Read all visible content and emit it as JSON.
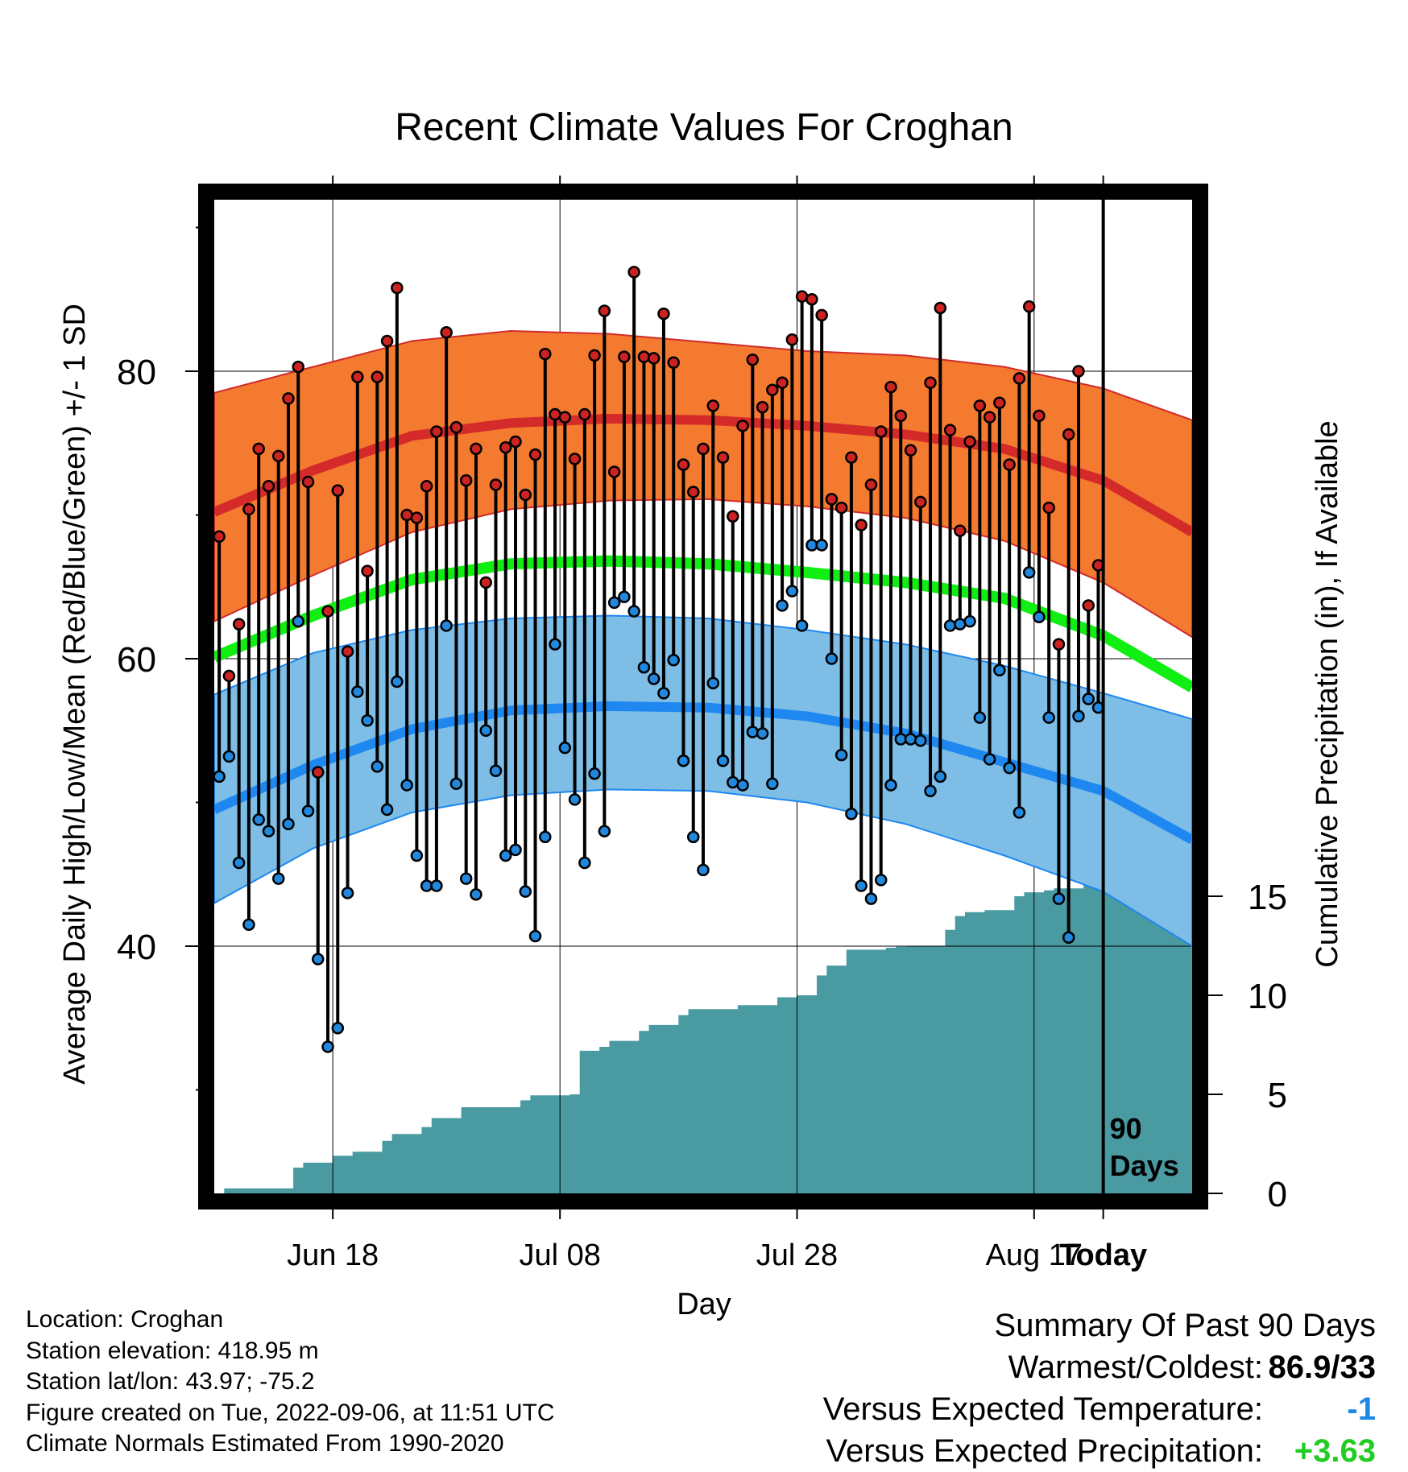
{
  "chart_data": {
    "type": "line",
    "title": "Recent Climate Values For Croghan",
    "xlabel": "Day",
    "ylabel": "Average Daily High/Low/Mean (Red/Blue/Green) +/- 1 SD",
    "y2label": "Cumulative Precipitation (in), If Available",
    "ylim": [
      23,
      92
    ],
    "y2lim": [
      0,
      20
    ],
    "x_ticks": [
      "Jun 18",
      "Jul 08",
      "Jul 28",
      "Aug 17",
      "Today"
    ],
    "y_ticks": [
      40,
      60,
      80
    ],
    "y2_ticks": [
      0,
      5,
      10,
      15
    ],
    "marker_label": [
      "90",
      "Days"
    ],
    "colors": {
      "high_band": "#f47a30",
      "high_mean": "#d42a2a",
      "low_band": "#7dbde6",
      "low_mean": "#1e88f0",
      "mean": "#11ee11",
      "precip": "#4a9aa2",
      "high_dot": "#cc2222",
      "low_dot": "#2288dd"
    },
    "normals": {
      "day": [
        0,
        10,
        20,
        30,
        40,
        50,
        60,
        70,
        80,
        90,
        99
      ],
      "high_mean": [
        70.2,
        73.1,
        75.5,
        76.4,
        76.7,
        76.6,
        76.2,
        75.6,
        74.6,
        72.4,
        68.8
      ],
      "high_upper": [
        78.5,
        80.3,
        82.1,
        82.8,
        82.6,
        82.0,
        81.4,
        81.1,
        80.3,
        78.8,
        76.6
      ],
      "high_lower": [
        62.6,
        65.8,
        68.8,
        70.4,
        71.0,
        71.1,
        70.6,
        69.8,
        68.2,
        65.3,
        61.5
      ],
      "mean": [
        60.1,
        63.0,
        65.5,
        66.6,
        66.8,
        66.6,
        66.0,
        65.3,
        64.2,
        61.6,
        58.0
      ],
      "low_upper": [
        57.5,
        60.4,
        62.0,
        62.8,
        63.0,
        62.8,
        62.0,
        61.0,
        59.5,
        57.6,
        55.8
      ],
      "low_mean": [
        49.5,
        52.6,
        55.1,
        56.4,
        56.7,
        56.6,
        56.0,
        54.8,
        52.8,
        50.8,
        47.4
      ],
      "low_lower": [
        43.0,
        46.8,
        49.3,
        50.5,
        50.9,
        50.8,
        50.0,
        48.5,
        46.3,
        43.8,
        40.0
      ]
    },
    "series": [
      {
        "name": "High",
        "x": [
          0,
          1,
          2,
          3,
          4,
          5,
          6,
          7,
          8,
          9,
          10,
          11,
          12,
          13,
          14,
          15,
          16,
          17,
          18,
          19,
          20,
          21,
          22,
          23,
          24,
          25,
          26,
          27,
          28,
          29,
          30,
          31,
          32,
          33,
          34,
          35,
          36,
          37,
          38,
          39,
          40,
          41,
          42,
          43,
          44,
          45,
          46,
          47,
          48,
          49,
          50,
          51,
          52,
          53,
          54,
          55,
          56,
          57,
          58,
          59,
          60,
          61,
          62,
          63,
          64,
          65,
          66,
          67,
          68,
          69,
          70,
          71,
          72,
          73,
          74,
          75,
          76,
          77,
          78,
          79,
          80,
          81,
          82,
          83,
          84,
          85,
          86,
          87,
          88,
          89
        ],
        "values": [
          68.5,
          58.8,
          62.4,
          70.4,
          74.6,
          72.0,
          74.1,
          78.1,
          80.3,
          72.3,
          52.1,
          63.3,
          71.7,
          60.5,
          79.6,
          66.1,
          79.6,
          82.1,
          85.8,
          70.0,
          69.8,
          72.0,
          75.8,
          82.7,
          76.1,
          72.4,
          74.6,
          65.3,
          72.1,
          74.7,
          75.1,
          71.4,
          74.2,
          81.2,
          77.0,
          76.8,
          73.9,
          77.0,
          81.1,
          84.2,
          73.0,
          81.0,
          86.9,
          81.0,
          80.9,
          84.0,
          80.6,
          73.5,
          71.6,
          74.6,
          77.6,
          74.0,
          69.9,
          76.2,
          80.8,
          77.5,
          78.7,
          79.2,
          82.2,
          85.2,
          85.0,
          83.9,
          71.1,
          70.5,
          74.0,
          69.3,
          72.1,
          75.8,
          78.9,
          76.9,
          74.5,
          70.9,
          79.2,
          84.4,
          75.9,
          68.9,
          75.1,
          77.6,
          76.8,
          77.8,
          73.5,
          79.5,
          84.5,
          76.9,
          70.5,
          61.0,
          75.6,
          80.0,
          63.7,
          66.5
        ]
      },
      {
        "name": "Low",
        "x": [
          0,
          1,
          2,
          3,
          4,
          5,
          6,
          7,
          8,
          9,
          10,
          11,
          12,
          13,
          14,
          15,
          16,
          17,
          18,
          19,
          20,
          21,
          22,
          23,
          24,
          25,
          26,
          27,
          28,
          29,
          30,
          31,
          32,
          33,
          34,
          35,
          36,
          37,
          38,
          39,
          40,
          41,
          42,
          43,
          44,
          45,
          46,
          47,
          48,
          49,
          50,
          51,
          52,
          53,
          54,
          55,
          56,
          57,
          58,
          59,
          60,
          61,
          62,
          63,
          64,
          65,
          66,
          67,
          68,
          69,
          70,
          71,
          72,
          73,
          74,
          75,
          76,
          77,
          78,
          79,
          80,
          81,
          82,
          83,
          84,
          85,
          86,
          87,
          88,
          89
        ],
        "values": [
          51.8,
          53.2,
          45.8,
          41.5,
          48.8,
          48.0,
          44.7,
          48.5,
          62.6,
          49.4,
          39.1,
          33.0,
          34.3,
          43.7,
          57.7,
          55.7,
          52.5,
          49.5,
          58.4,
          51.2,
          46.3,
          44.2,
          44.2,
          62.3,
          51.3,
          44.7,
          43.6,
          55.0,
          52.2,
          46.3,
          46.7,
          43.8,
          40.7,
          47.6,
          61.0,
          53.8,
          50.2,
          45.8,
          52.0,
          48.0,
          63.9,
          64.3,
          63.3,
          59.4,
          58.6,
          57.6,
          59.9,
          52.9,
          47.6,
          45.3,
          58.3,
          52.9,
          51.4,
          51.2,
          54.9,
          54.8,
          51.3,
          63.7,
          64.7,
          62.3,
          67.9,
          67.9,
          60.0,
          53.3,
          49.2,
          44.2,
          43.3,
          44.6,
          51.2,
          54.4,
          54.4,
          54.3,
          50.8,
          51.8,
          62.3,
          62.4,
          62.6,
          55.9,
          53.0,
          59.2,
          52.4,
          49.3,
          66.0,
          62.9,
          55.9,
          43.3,
          40.6,
          56.0,
          57.2,
          56.6
        ]
      },
      {
        "name": "Cumulative Precipitation",
        "x": [
          0,
          1,
          2,
          3,
          4,
          5,
          6,
          7,
          8,
          9,
          10,
          11,
          12,
          13,
          14,
          15,
          16,
          17,
          18,
          19,
          20,
          21,
          22,
          23,
          24,
          25,
          26,
          27,
          28,
          29,
          30,
          31,
          32,
          33,
          34,
          35,
          36,
          37,
          38,
          39,
          40,
          41,
          42,
          43,
          44,
          45,
          46,
          47,
          48,
          49,
          50,
          51,
          52,
          53,
          54,
          55,
          56,
          57,
          58,
          59,
          60,
          61,
          62,
          63,
          64,
          65,
          66,
          67,
          68,
          69,
          70,
          71,
          72,
          73,
          74,
          75,
          76,
          77,
          78,
          79,
          80,
          81,
          82,
          83,
          84,
          85,
          86,
          87,
          88,
          89,
          90,
          91,
          92,
          93,
          94,
          95,
          96,
          97,
          98,
          99
        ],
        "values": [
          0.0,
          0.25,
          0.25,
          0.25,
          0.25,
          0.25,
          0.25,
          0.25,
          1.3,
          1.55,
          1.55,
          1.55,
          1.9,
          1.9,
          2.1,
          2.1,
          2.1,
          2.65,
          3.0,
          3.0,
          3.0,
          3.35,
          3.8,
          3.8,
          3.8,
          4.35,
          4.35,
          4.35,
          4.35,
          4.35,
          4.35,
          4.7,
          4.95,
          4.95,
          4.95,
          4.95,
          5.0,
          7.2,
          7.2,
          7.4,
          7.7,
          7.7,
          7.7,
          8.2,
          8.5,
          8.5,
          8.5,
          9.0,
          9.3,
          9.3,
          9.3,
          9.3,
          9.3,
          9.5,
          9.5,
          9.5,
          9.5,
          9.9,
          9.9,
          10.0,
          10.0,
          11.0,
          11.5,
          11.5,
          12.3,
          12.3,
          12.3,
          12.3,
          12.4,
          12.45,
          12.5,
          12.5,
          12.5,
          12.5,
          13.3,
          14.0,
          14.2,
          14.2,
          14.3,
          14.3,
          14.3,
          15.0,
          15.2,
          15.2,
          15.3,
          15.4,
          15.4,
          15.4,
          15.6,
          15.6,
          15.6,
          15.6,
          15.6,
          15.6,
          15.6,
          15.6,
          15.6,
          15.6,
          15.6,
          15.6
        ]
      }
    ]
  },
  "info": {
    "location": "Location: Croghan",
    "elevation": "Station elevation: 418.95 m",
    "latlon": "Station lat/lon: 43.97; -75.2",
    "created": "Figure created on Tue, 2022-09-06, at 11:51 UTC",
    "normals": "Climate Normals Estimated From 1990-2020"
  },
  "summary": {
    "title": "Summary Of Past 90 Days",
    "warm_cold_label": "Warmest/Coldest:",
    "warm_cold_value": "86.9/33",
    "temp_label": "Versus Expected Temperature:",
    "temp_value": "-1",
    "temp_color": "#1e88e5",
    "precip_label": "Versus Expected Precipitation:",
    "precip_value": "+3.63",
    "precip_color": "#22cc22"
  }
}
